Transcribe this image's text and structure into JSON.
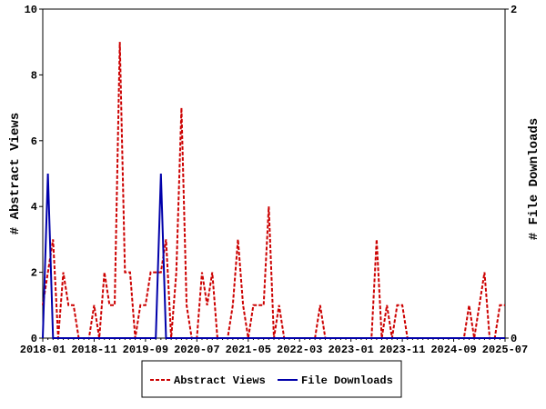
{
  "chart_data": {
    "type": "line",
    "y_label": "# Abstract Views",
    "y2_label": "# File Downloads",
    "categories": [
      "2018-01",
      null,
      null,
      null,
      null,
      null,
      null,
      null,
      null,
      null,
      "2018-11",
      null,
      null,
      null,
      null,
      null,
      null,
      null,
      null,
      null,
      "2019-09",
      null,
      null,
      null,
      null,
      null,
      null,
      null,
      null,
      null,
      "2020-07",
      null,
      null,
      null,
      null,
      null,
      null,
      null,
      null,
      null,
      "2021-05",
      null,
      null,
      null,
      null,
      null,
      null,
      null,
      null,
      null,
      "2022-03",
      null,
      null,
      null,
      null,
      null,
      null,
      null,
      null,
      null,
      "2023-01",
      null,
      null,
      null,
      null,
      null,
      null,
      null,
      null,
      null,
      "2023-11",
      null,
      null,
      null,
      null,
      null,
      null,
      null,
      null,
      null,
      "2024-09",
      null,
      null,
      null,
      null,
      null,
      null,
      null,
      null,
      null,
      "2025-07"
    ],
    "series": [
      {
        "name": "Abstract Views",
        "color": "#cc0000",
        "linestyle": "dashed",
        "axis": "y",
        "values": [
          1,
          2,
          3,
          0,
          2,
          1,
          1,
          0,
          0,
          0,
          1,
          0,
          2,
          1,
          1,
          9,
          2,
          2,
          0,
          1,
          1,
          2,
          2,
          2,
          3,
          0,
          2,
          7,
          1,
          0,
          0,
          2,
          1,
          2,
          0,
          0,
          0,
          1,
          3,
          1,
          0,
          1,
          1,
          1,
          4,
          0,
          1,
          0,
          0,
          0,
          0,
          0,
          0,
          0,
          1,
          0,
          0,
          0,
          0,
          0,
          0,
          0,
          0,
          0,
          0,
          3,
          0,
          1,
          0,
          1,
          1,
          0,
          0,
          0,
          0,
          0,
          0,
          0,
          0,
          0,
          0,
          0,
          0,
          1,
          0,
          1,
          2,
          0,
          0,
          1,
          1
        ]
      },
      {
        "name": "File Downloads",
        "color": "#0000aa",
        "linestyle": "solid",
        "axis": "y2",
        "values": [
          0,
          1,
          0,
          0,
          0,
          0,
          0,
          0,
          0,
          0,
          0,
          0,
          0,
          0,
          0,
          0,
          0,
          0,
          0,
          0,
          0,
          0,
          0,
          1,
          0,
          0,
          0,
          0,
          0,
          0,
          0,
          0,
          0,
          0,
          0,
          0,
          0,
          0,
          0,
          0,
          0,
          0,
          0,
          0,
          0,
          0,
          0,
          0,
          0,
          0,
          0,
          0,
          0,
          0,
          0,
          0,
          0,
          0,
          0,
          0,
          0,
          0,
          0,
          0,
          0,
          0,
          0,
          0,
          0,
          0,
          0,
          0,
          0,
          0,
          0,
          0,
          0,
          0,
          0,
          0,
          0,
          0,
          0,
          0,
          0,
          0,
          0,
          0,
          0,
          0,
          0
        ]
      }
    ],
    "ylim": [
      0,
      10
    ],
    "yticks": [
      0,
      2,
      4,
      6,
      8,
      10
    ],
    "y2lim": [
      0,
      2
    ],
    "y2ticks": [
      0,
      2
    ],
    "legend": "bottom",
    "grid": false
  }
}
